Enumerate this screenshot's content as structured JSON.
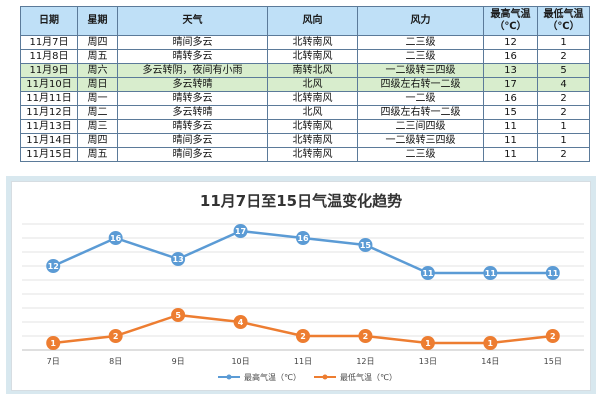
{
  "table": {
    "headers": [
      "日期",
      "星期",
      "天气",
      "风向",
      "风力",
      "最高气温\n（℃）",
      "最低气温\n（℃）"
    ],
    "rows": [
      {
        "date": "11月7日",
        "weekday": "周四",
        "weather": "晴间多云",
        "wind_dir": "北转南风",
        "wind_force": "二三级",
        "high": "12",
        "low": "1",
        "highlight": false
      },
      {
        "date": "11月8日",
        "weekday": "周五",
        "weather": "晴转多云",
        "wind_dir": "北转南风",
        "wind_force": "二三级",
        "high": "16",
        "low": "2",
        "highlight": false
      },
      {
        "date": "11月9日",
        "weekday": "周六",
        "weather": "多云转阴，夜间有小雨",
        "wind_dir": "南转北风",
        "wind_force": "一二级转三四级",
        "high": "13",
        "low": "5",
        "highlight": true
      },
      {
        "date": "11月10日",
        "weekday": "周日",
        "weather": "多云转晴",
        "wind_dir": "北风",
        "wind_force": "四级左右转一二级",
        "high": "17",
        "low": "4",
        "highlight": true
      },
      {
        "date": "11月11日",
        "weekday": "周一",
        "weather": "晴转多云",
        "wind_dir": "北转南风",
        "wind_force": "一二级",
        "high": "16",
        "low": "2",
        "highlight": false
      },
      {
        "date": "11月12日",
        "weekday": "周二",
        "weather": "多云转晴",
        "wind_dir": "北风",
        "wind_force": "四级左右转一二级",
        "high": "15",
        "low": "2",
        "highlight": false
      },
      {
        "date": "11月13日",
        "weekday": "周三",
        "weather": "晴转多云",
        "wind_dir": "北转南风",
        "wind_force": "二三间四级",
        "high": "11",
        "low": "1",
        "highlight": false
      },
      {
        "date": "11月14日",
        "weekday": "周四",
        "weather": "晴间多云",
        "wind_dir": "北转南风",
        "wind_force": "一二级转三四级",
        "high": "11",
        "low": "1",
        "highlight": false
      },
      {
        "date": "11月15日",
        "weekday": "周五",
        "weather": "晴间多云",
        "wind_dir": "北转南风",
        "wind_force": "二三级",
        "high": "11",
        "low": "2",
        "highlight": false
      }
    ]
  },
  "chart_data": {
    "type": "line",
    "title": "11月7日至15日气温变化趋势",
    "categories": [
      "7日",
      "8日",
      "9日",
      "10日",
      "11日",
      "12日",
      "13日",
      "14日",
      "15日"
    ],
    "series": [
      {
        "name": "最高气温（℃）",
        "values": [
          12,
          16,
          13,
          17,
          16,
          15,
          11,
          11,
          11
        ],
        "color": "#5b9bd5"
      },
      {
        "name": "最低气温（℃）",
        "values": [
          1,
          2,
          5,
          4,
          2,
          2,
          1,
          1,
          2
        ],
        "color": "#ed7d31"
      }
    ],
    "ylim": [
      0,
      18
    ],
    "grid": true,
    "legend": "bottom",
    "data_labels": true
  }
}
